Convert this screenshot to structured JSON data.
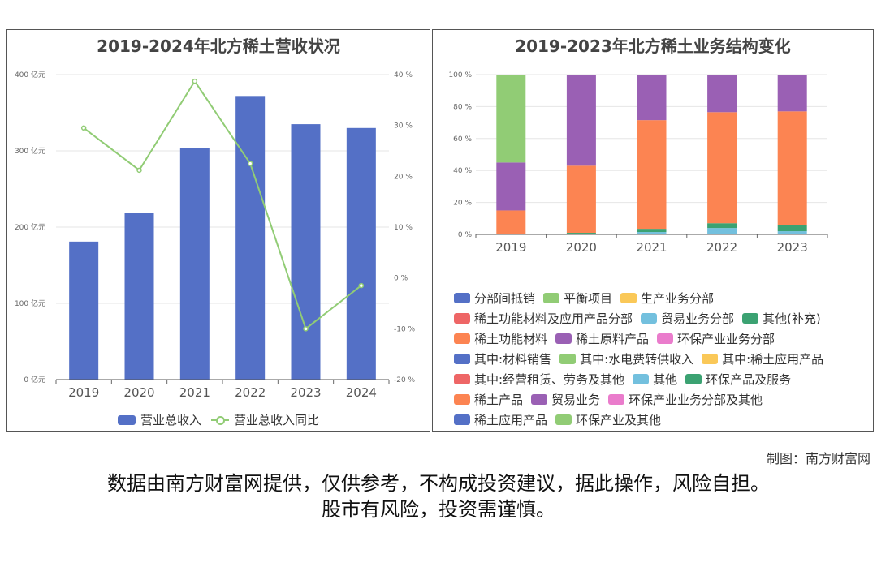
{
  "credit": "制图：南方财富网",
  "disclaimer": {
    "line1": "数据由南方财富网提供，仅供参考，不构成投资建议，据此操作，风险自担。",
    "line2": "股市有风险，投资需谨慎。"
  },
  "chart_data": [
    {
      "type": "bar",
      "title": "2019-2024年北方稀土营收状况",
      "categories": [
        "2019",
        "2020",
        "2021",
        "2022",
        "2023",
        "2024"
      ],
      "series": [
        {
          "name": "营业总收入",
          "type": "bar",
          "axis": "left",
          "color": "#5470c6",
          "values": [
            181,
            219,
            304,
            372,
            335,
            330
          ]
        },
        {
          "name": "营业总收入同比",
          "type": "line",
          "axis": "right",
          "color": "#91cc75",
          "values": [
            29.5,
            21.2,
            38.7,
            22.5,
            -10.0,
            -1.5
          ]
        }
      ],
      "y_left": {
        "ticks": [
          "0 亿元",
          "100 亿元",
          "200 亿元",
          "300 亿元",
          "400 亿元"
        ],
        "ylim": [
          0,
          400
        ]
      },
      "y_right": {
        "ticks": [
          "-20 %",
          "-10 %",
          "0 %",
          "10 %",
          "20 %",
          "30 %",
          "40 %"
        ],
        "ylim": [
          -20,
          40
        ]
      },
      "grid": true,
      "legend": "bottom"
    },
    {
      "type": "bar",
      "stacked": true,
      "title": "2019-2023年北方稀土业务结构变化",
      "categories": [
        "2019",
        "2020",
        "2021",
        "2022",
        "2023"
      ],
      "y_ticks": [
        "0 %",
        "20 %",
        "40 %",
        "60 %",
        "80 %",
        "100 %"
      ],
      "ylim": [
        0,
        100
      ],
      "grid": true,
      "legend": "bottom",
      "series": [
        {
          "name": "分部间抵销",
          "color": "#5470c6",
          "values": [
            0,
            0,
            0,
            0,
            0
          ]
        },
        {
          "name": "平衡项目",
          "color": "#91cc75",
          "values": [
            0,
            0,
            0,
            0,
            0
          ]
        },
        {
          "name": "生产业务分部",
          "color": "#fac858",
          "values": [
            0,
            0,
            0,
            0,
            0
          ]
        },
        {
          "name": "稀土功能材料及应用产品分部",
          "color": "#ee6666",
          "values": [
            0,
            0,
            0,
            0,
            0
          ]
        },
        {
          "name": "贸易业务分部",
          "color": "#73c0de",
          "values": [
            0,
            0,
            0,
            0,
            0
          ]
        },
        {
          "name": "其他(补充)",
          "color": "#3ba272",
          "values": [
            0,
            0,
            0,
            0,
            0
          ]
        },
        {
          "name": "稀土功能材料",
          "color": "#fc8452",
          "values": [
            0,
            0,
            0,
            0,
            0
          ]
        },
        {
          "name": "稀土原料产品",
          "color": "#9a60b4",
          "values": [
            0,
            0,
            0,
            0,
            0
          ]
        },
        {
          "name": "环保产业业务分部",
          "color": "#ea7ccc",
          "values": [
            0,
            0,
            0,
            0,
            0
          ]
        },
        {
          "name": "其中:材料销售",
          "color": "#5470c6",
          "values": [
            0,
            0,
            0,
            0,
            0
          ]
        },
        {
          "name": "其中:水电费转供收入",
          "color": "#91cc75",
          "values": [
            0,
            0,
            0,
            0,
            0
          ]
        },
        {
          "name": "其中:稀土应用产品",
          "color": "#fac858",
          "values": [
            0,
            0,
            0,
            0,
            0
          ]
        },
        {
          "name": "其中:经营租赁、劳务及其他",
          "color": "#ee6666",
          "values": [
            0,
            0,
            0,
            0,
            0
          ]
        },
        {
          "name": "其他",
          "color": "#73c0de",
          "values": [
            0,
            0,
            1.5,
            4,
            2
          ]
        },
        {
          "name": "环保产品及服务",
          "color": "#3ba272",
          "values": [
            0,
            1,
            2,
            3,
            4
          ]
        },
        {
          "name": "稀土产品",
          "color": "#fc8452",
          "values": [
            15,
            42,
            68,
            69.5,
            71
          ]
        },
        {
          "name": "贸易业务",
          "color": "#9a60b4",
          "values": [
            30,
            57,
            28,
            23.5,
            23
          ]
        },
        {
          "name": "环保产业业务分部及其他",
          "color": "#ea7ccc",
          "values": [
            0,
            0,
            0,
            0,
            0
          ]
        },
        {
          "name": "稀土应用产品",
          "color": "#5470c6",
          "values": [
            0,
            0,
            0.5,
            0,
            0
          ]
        },
        {
          "name": "环保产业及其他",
          "color": "#91cc75",
          "values": [
            55,
            0,
            0,
            0,
            0
          ]
        }
      ]
    }
  ]
}
